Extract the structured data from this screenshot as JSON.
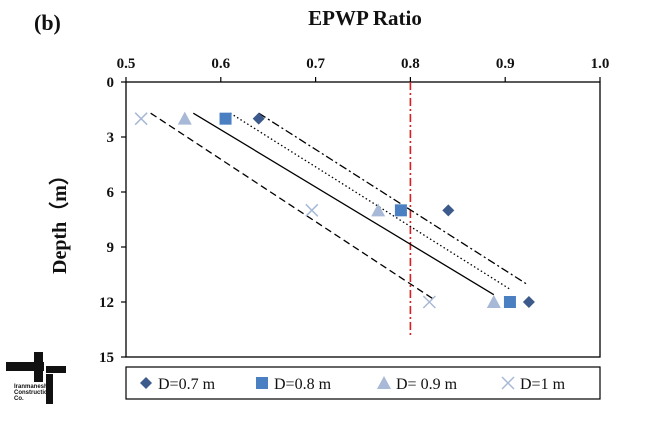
{
  "panel_label": "(b)",
  "logo": {
    "lines": [
      "Iranmanesh",
      "Construction",
      "Co."
    ],
    "colors": {
      "primary": "#111111"
    }
  },
  "chart_data": {
    "type": "scatter",
    "title": "",
    "xlabel": "EPWP Ratio",
    "ylabel": "Depth（m）",
    "xlim": [
      0.5,
      1.0
    ],
    "ylim": [
      0,
      15
    ],
    "y_inverted": true,
    "x_axis_position": "top",
    "x_ticks": [
      0.5,
      0.6,
      0.7,
      0.8,
      0.9,
      1.0
    ],
    "x_tick_labels": [
      "0.5",
      "0.6",
      "0.7",
      "0.8",
      "0.9",
      "1.0"
    ],
    "y_ticks": [
      0,
      3,
      6,
      9,
      12,
      15
    ],
    "y_tick_labels": [
      "0",
      "3",
      "6",
      "9",
      "12",
      "15"
    ],
    "grid": false,
    "legend_position": "bottom",
    "reference_line": {
      "x": 0.8,
      "color": "#d81e1e",
      "style": "dash-dot"
    },
    "series": [
      {
        "name": "D=0.7 m",
        "marker": "diamond",
        "color": "#3c5a8c",
        "points": [
          {
            "x": 0.64,
            "y": 2
          },
          {
            "x": 0.84,
            "y": 7
          },
          {
            "x": 0.925,
            "y": 12
          }
        ],
        "trendline": {
          "style": "dash-dot",
          "from": {
            "x": 0.64,
            "y": 1.7
          },
          "to": {
            "x": 0.922,
            "y": 11.0
          }
        }
      },
      {
        "name": "D=0.8 m",
        "marker": "square",
        "color": "#4a7fc1",
        "points": [
          {
            "x": 0.605,
            "y": 2
          },
          {
            "x": 0.79,
            "y": 7
          },
          {
            "x": 0.905,
            "y": 12
          }
        ],
        "trendline": {
          "style": "dotted",
          "from": {
            "x": 0.61,
            "y": 1.7
          },
          "to": {
            "x": 0.905,
            "y": 11.3
          }
        }
      },
      {
        "name": "D= 0.9 m",
        "marker": "triangle",
        "color": "#a7b9d6",
        "points": [
          {
            "x": 0.562,
            "y": 2
          },
          {
            "x": 0.766,
            "y": 7
          },
          {
            "x": 0.888,
            "y": 12
          }
        ],
        "trendline": {
          "style": "solid",
          "from": {
            "x": 0.571,
            "y": 1.7
          },
          "to": {
            "x": 0.888,
            "y": 11.6
          }
        }
      },
      {
        "name": "D=1 m",
        "marker": "x",
        "color": "#a7b9d6",
        "points": [
          {
            "x": 0.516,
            "y": 2
          },
          {
            "x": 0.696,
            "y": 7
          },
          {
            "x": 0.82,
            "y": 12
          }
        ],
        "trendline": {
          "style": "dashed",
          "from": {
            "x": 0.526,
            "y": 1.7
          },
          "to": {
            "x": 0.826,
            "y": 11.9
          }
        }
      }
    ]
  }
}
